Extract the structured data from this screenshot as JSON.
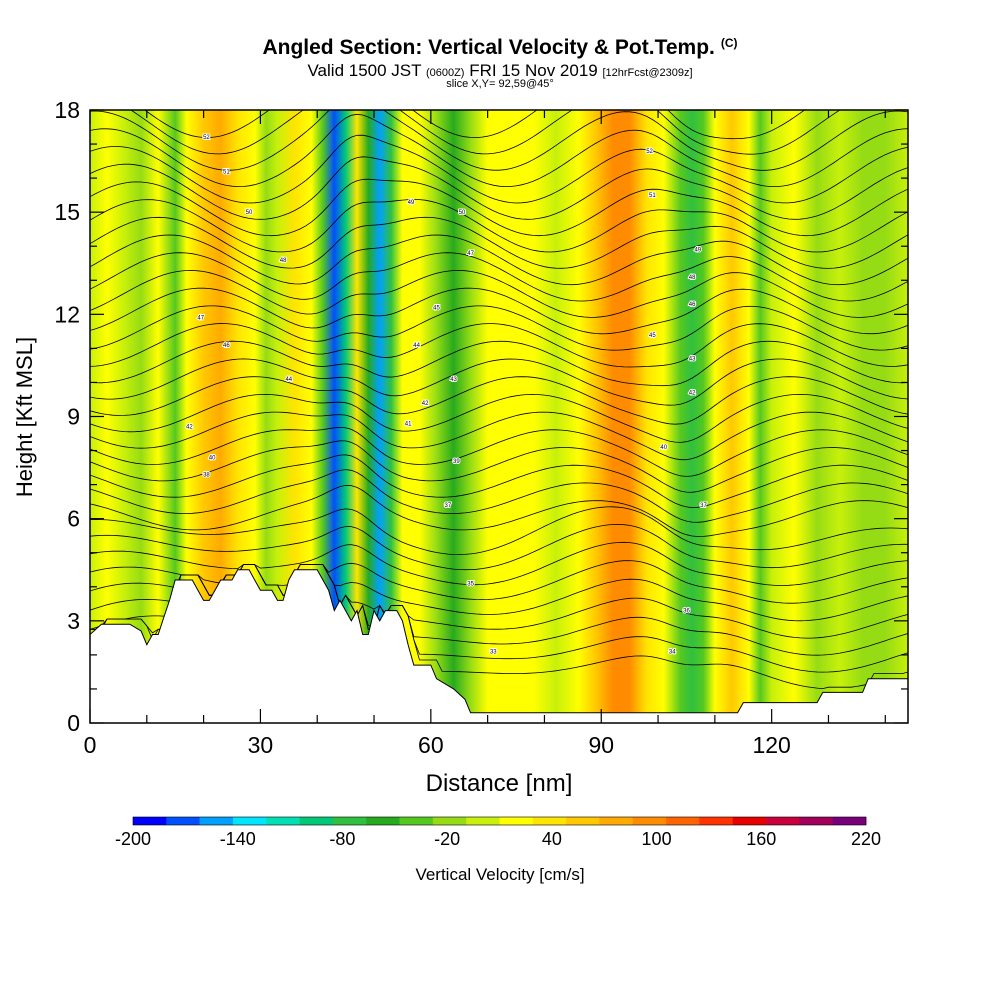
{
  "chart_data": {
    "type": "heatmap",
    "title": "Angled Section: Vertical Velocity & Pot.Temp.",
    "title_suffix": "(C)",
    "subtitle_parts": [
      "Valid 1500 JST",
      "(0600Z)",
      "FRI 15 Nov 2019",
      "[12hrFcst@2309z]"
    ],
    "slice_label": "slice X,Y= 92,59@45°",
    "xlabel": "Distance [nm]",
    "ylabel": "Height [Kft MSL]",
    "xlim": [
      0,
      144
    ],
    "ylim": [
      0,
      18
    ],
    "x_ticks": [
      0,
      30,
      60,
      90,
      120
    ],
    "y_ticks": [
      0,
      3,
      6,
      9,
      12,
      15,
      18
    ],
    "colorbar_label": "Vertical Velocity [cm/s]",
    "colorbar_ticks": [
      -200,
      -140,
      -80,
      -20,
      40,
      100,
      160,
      220
    ],
    "colorbar_colors": [
      "#0000ff",
      "#0050ff",
      "#00a0ff",
      "#00e6ff",
      "#00e0b4",
      "#00c878",
      "#30c040",
      "#28aa1e",
      "#55c820",
      "#96dc14",
      "#c8f00a",
      "#ffff00",
      "#ffe400",
      "#ffc800",
      "#ffaa00",
      "#ff8c00",
      "#ff6400",
      "#ff3200",
      "#e60000",
      "#c8003c",
      "#a0005a",
      "#78007a"
    ],
    "velocity_bands": [
      {
        "x": 0,
        "v": 0
      },
      {
        "x": 3,
        "v": 20
      },
      {
        "x": 6,
        "v": 0
      },
      {
        "x": 9,
        "v": -10
      },
      {
        "x": 12,
        "v": 10
      },
      {
        "x": 15,
        "v": -40
      },
      {
        "x": 17,
        "v": 20
      },
      {
        "x": 20,
        "v": 60
      },
      {
        "x": 23,
        "v": 80
      },
      {
        "x": 26,
        "v": 40
      },
      {
        "x": 29,
        "v": 10
      },
      {
        "x": 31,
        "v": -20
      },
      {
        "x": 33,
        "v": 0
      },
      {
        "x": 36,
        "v": 30
      },
      {
        "x": 39,
        "v": 10
      },
      {
        "x": 41,
        "v": -40
      },
      {
        "x": 43,
        "v": -180
      },
      {
        "x": 45,
        "v": -100
      },
      {
        "x": 47,
        "v": 30
      },
      {
        "x": 49,
        "v": -60
      },
      {
        "x": 51,
        "v": -150
      },
      {
        "x": 53,
        "v": -70
      },
      {
        "x": 55,
        "v": 10
      },
      {
        "x": 58,
        "v": 20
      },
      {
        "x": 61,
        "v": -20
      },
      {
        "x": 64,
        "v": -50
      },
      {
        "x": 67,
        "v": -20
      },
      {
        "x": 70,
        "v": 20
      },
      {
        "x": 74,
        "v": 10
      },
      {
        "x": 78,
        "v": 20
      },
      {
        "x": 82,
        "v": 0
      },
      {
        "x": 86,
        "v": 20
      },
      {
        "x": 89,
        "v": 60
      },
      {
        "x": 92,
        "v": 100
      },
      {
        "x": 95,
        "v": 90
      },
      {
        "x": 98,
        "v": 40
      },
      {
        "x": 101,
        "v": 10
      },
      {
        "x": 104,
        "v": -40
      },
      {
        "x": 106,
        "v": -70
      },
      {
        "x": 108,
        "v": -30
      },
      {
        "x": 110,
        "v": 20
      },
      {
        "x": 113,
        "v": 60
      },
      {
        "x": 116,
        "v": 20
      },
      {
        "x": 118,
        "v": -40
      },
      {
        "x": 120,
        "v": 0
      },
      {
        "x": 124,
        "v": 10
      },
      {
        "x": 128,
        "v": -10
      },
      {
        "x": 132,
        "v": 0
      },
      {
        "x": 136,
        "v": -20
      },
      {
        "x": 140,
        "v": -10
      },
      {
        "x": 144,
        "v": 0
      }
    ],
    "terrain": [
      [
        0,
        2.6
      ],
      [
        2,
        2.9
      ],
      [
        7,
        2.9
      ],
      [
        9,
        2.7
      ],
      [
        10,
        2.3
      ],
      [
        11,
        2.6
      ],
      [
        12,
        2.6
      ],
      [
        13,
        3.1
      ],
      [
        14,
        3.6
      ],
      [
        15,
        4.2
      ],
      [
        18,
        4.2
      ],
      [
        19,
        3.9
      ],
      [
        20,
        3.6
      ],
      [
        21,
        3.6
      ],
      [
        22,
        3.9
      ],
      [
        23,
        4.2
      ],
      [
        25,
        4.2
      ],
      [
        26,
        4.5
      ],
      [
        28,
        4.5
      ],
      [
        29,
        4.2
      ],
      [
        30,
        3.9
      ],
      [
        32,
        3.9
      ],
      [
        33,
        3.6
      ],
      [
        34,
        3.6
      ],
      [
        35,
        4.2
      ],
      [
        36,
        4.5
      ],
      [
        40,
        4.5
      ],
      [
        41,
        4.2
      ],
      [
        42,
        3.9
      ],
      [
        43,
        3.3
      ],
      [
        44,
        3.6
      ],
      [
        45,
        3.3
      ],
      [
        46,
        3.0
      ],
      [
        47,
        3.3
      ],
      [
        48,
        2.6
      ],
      [
        49,
        2.6
      ],
      [
        50,
        3.3
      ],
      [
        51,
        3.0
      ],
      [
        52,
        3.3
      ],
      [
        54,
        3.3
      ],
      [
        55,
        3.0
      ],
      [
        56,
        2.3
      ],
      [
        57,
        1.7
      ],
      [
        60,
        1.7
      ],
      [
        61,
        1.3
      ],
      [
        64,
        1.0
      ],
      [
        66,
        0.7
      ],
      [
        67,
        0.3
      ],
      [
        114,
        0.3
      ],
      [
        115,
        0.6
      ],
      [
        128,
        0.6
      ],
      [
        129,
        0.9
      ],
      [
        136,
        0.9
      ],
      [
        137,
        1.3
      ],
      [
        144,
        1.3
      ]
    ],
    "contour_labels": [
      {
        "text": "52",
        "x": 20.5,
        "y": 17.2
      },
      {
        "text": "51",
        "x": 24,
        "y": 16.2
      },
      {
        "text": "50",
        "x": 28,
        "y": 15.0
      },
      {
        "text": "48",
        "x": 34,
        "y": 13.6
      },
      {
        "text": "47",
        "x": 19.5,
        "y": 11.9
      },
      {
        "text": "46",
        "x": 24,
        "y": 11.1
      },
      {
        "text": "44",
        "x": 35,
        "y": 10.1
      },
      {
        "text": "42",
        "x": 17.5,
        "y": 8.7
      },
      {
        "text": "40",
        "x": 21.5,
        "y": 7.8
      },
      {
        "text": "38",
        "x": 20.5,
        "y": 7.3
      },
      {
        "text": "49",
        "x": 56.5,
        "y": 15.3
      },
      {
        "text": "50",
        "x": 65.5,
        "y": 15.0
      },
      {
        "text": "47",
        "x": 67,
        "y": 13.8
      },
      {
        "text": "45",
        "x": 61,
        "y": 12.2
      },
      {
        "text": "44",
        "x": 57.5,
        "y": 11.1
      },
      {
        "text": "43",
        "x": 64,
        "y": 10.1
      },
      {
        "text": "42",
        "x": 59,
        "y": 9.4
      },
      {
        "text": "41",
        "x": 56,
        "y": 8.8
      },
      {
        "text": "39",
        "x": 64.5,
        "y": 7.7
      },
      {
        "text": "37",
        "x": 63,
        "y": 6.4
      },
      {
        "text": "35",
        "x": 67,
        "y": 4.1
      },
      {
        "text": "33",
        "x": 71,
        "y": 2.1
      },
      {
        "text": "52",
        "x": 98.5,
        "y": 16.8
      },
      {
        "text": "51",
        "x": 99,
        "y": 15.5
      },
      {
        "text": "49",
        "x": 107,
        "y": 13.9
      },
      {
        "text": "48",
        "x": 106,
        "y": 13.1
      },
      {
        "text": "46",
        "x": 106,
        "y": 12.3
      },
      {
        "text": "45",
        "x": 99,
        "y": 11.4
      },
      {
        "text": "43",
        "x": 106,
        "y": 10.7
      },
      {
        "text": "42",
        "x": 106,
        "y": 9.7
      },
      {
        "text": "40",
        "x": 101,
        "y": 8.1
      },
      {
        "text": "37",
        "x": 108,
        "y": 6.4
      },
      {
        "text": "36",
        "x": 105,
        "y": 3.3
      },
      {
        "text": "34",
        "x": 102.5,
        "y": 2.1
      }
    ]
  }
}
